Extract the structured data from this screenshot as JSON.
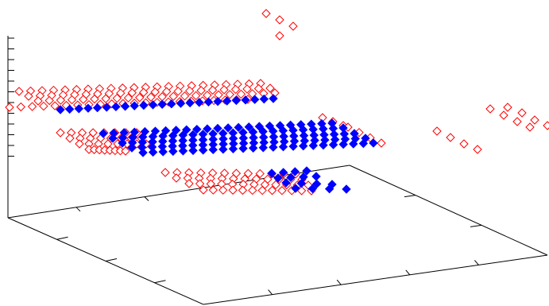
{
  "chart_data": {
    "type": "scatter",
    "projection": "3d",
    "title": "",
    "xlabel": "",
    "ylabel": "",
    "zlabel": "",
    "grid": false,
    "legend": "none",
    "colors": {
      "series_a": "#ff0000",
      "series_b": "#0000ff",
      "axes": "#000000"
    },
    "marker": "diamond",
    "series": [
      {
        "marker_style": "open",
        "color": "#ff0000",
        "segments": [
          {
            "count": 22,
            "from": [
              24,
              115
            ],
            "to": [
              328,
              105
            ]
          },
          {
            "count": 22,
            "from": [
              36,
              121
            ],
            "to": [
              340,
              111
            ]
          },
          {
            "count": 22,
            "from": [
              48,
              127
            ],
            "to": [
              346,
              117
            ]
          },
          {
            "count": 22,
            "from": [
              12,
              135
            ],
            "to": [
              312,
              125
            ]
          },
          {
            "count": 8,
            "from": [
              76,
              167
            ],
            "to": [
              172,
              167
            ]
          },
          {
            "count": 8,
            "from": [
              88,
              174
            ],
            "to": [
              178,
              174
            ]
          },
          {
            "count": 8,
            "from": [
              100,
              181
            ],
            "to": [
              184,
              181
            ]
          },
          {
            "count": 8,
            "from": [
              112,
              188
            ],
            "to": [
              158,
              190
            ]
          },
          {
            "count": 3,
            "from": [
              406,
              148
            ],
            "to": [
              432,
              158
            ]
          },
          {
            "count": 4,
            "from": [
              438,
              160
            ],
            "to": [
              480,
              180
            ]
          },
          {
            "count": 12,
            "from": [
              208,
              217
            ],
            "to": [
              372,
              219
            ]
          },
          {
            "count": 12,
            "from": [
              222,
              224
            ],
            "to": [
              380,
              226
            ]
          },
          {
            "count": 12,
            "from": [
              238,
              231
            ],
            "to": [
              388,
              233
            ]
          },
          {
            "count": 12,
            "from": [
              256,
              239
            ],
            "to": [
              392,
              240
            ]
          }
        ],
        "points": [
          [
            335,
            17
          ],
          [
            352,
            25
          ],
          [
            369,
            33
          ],
          [
            352,
            45
          ],
          [
            550,
            165
          ],
          [
            567,
            173
          ],
          [
            584,
            181
          ],
          [
            601,
            188
          ],
          [
            617,
            137
          ],
          [
            639,
            135
          ],
          [
            634,
            145
          ],
          [
            657,
            142
          ],
          [
            651,
            153
          ],
          [
            673,
            151
          ],
          [
            667,
            160
          ],
          [
            689,
            158
          ]
        ]
      },
      {
        "marker_style": "filled",
        "color": "#0000ff",
        "segments": [
          {
            "count": 24,
            "from": [
              76,
              138
            ],
            "to": [
              344,
              124
            ]
          },
          {
            "count": 23,
            "from": [
              130,
              168
            ],
            "to": [
              418,
              155
            ]
          },
          {
            "count": 24,
            "from": [
              142,
              174
            ],
            "to": [
              432,
              161
            ]
          },
          {
            "count": 24,
            "from": [
              154,
              180
            ],
            "to": [
              446,
              168
            ]
          },
          {
            "count": 24,
            "from": [
              166,
              186
            ],
            "to": [
              460,
              174
            ]
          },
          {
            "count": 24,
            "from": [
              180,
              192
            ],
            "to": [
              470,
              180
            ]
          },
          {
            "count": 4,
            "from": [
              342,
              218
            ],
            "to": [
              386,
              215
            ]
          },
          {
            "count": 4,
            "from": [
              350,
              224
            ],
            "to": [
              398,
              222
            ]
          },
          {
            "count": 4,
            "from": [
              360,
              230
            ],
            "to": [
              418,
              232
            ]
          },
          {
            "count": 4,
            "from": [
              372,
              237
            ],
            "to": [
              436,
              238
            ]
          }
        ],
        "points": []
      }
    ]
  }
}
